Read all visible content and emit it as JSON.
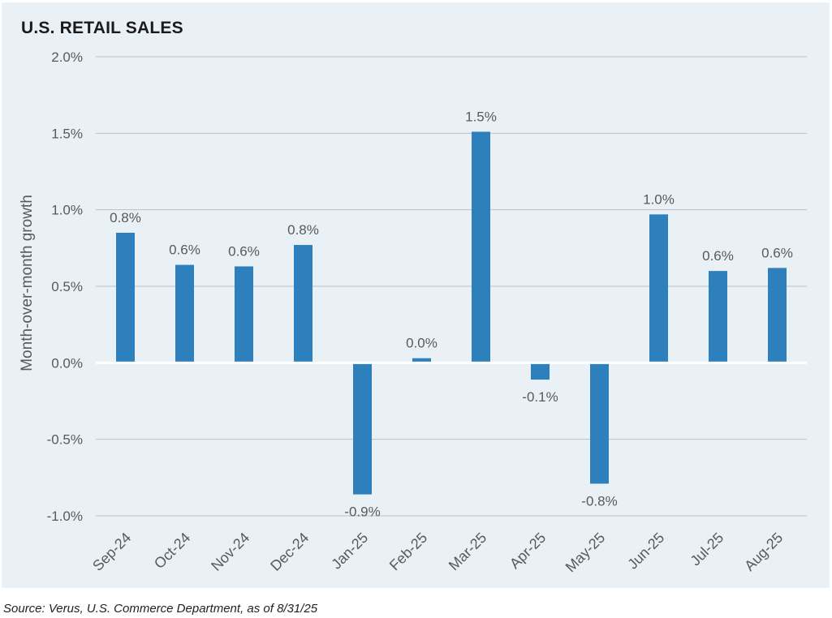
{
  "chart_data": {
    "type": "bar",
    "title": "U.S. RETAIL SALES",
    "ylabel": "Month-over-month growth",
    "xlabel": "",
    "categories": [
      "Sep-24",
      "Oct-24",
      "Nov-24",
      "Dec-24",
      "Jan-25",
      "Feb-25",
      "Mar-25",
      "Apr-25",
      "May-25",
      "Jun-25",
      "Jul-25",
      "Aug-25"
    ],
    "values": [
      0.85,
      0.64,
      0.63,
      0.77,
      -0.86,
      0.03,
      1.51,
      -0.11,
      -0.79,
      0.97,
      0.6,
      0.62
    ],
    "data_labels": [
      "0.8%",
      "0.6%",
      "0.6%",
      "0.8%",
      "-0.9%",
      "0.0%",
      "1.5%",
      "-0.1%",
      "-0.8%",
      "1.0%",
      "0.6%",
      "0.6%"
    ],
    "ylim": [
      -1.0,
      2.0
    ],
    "yticks": [
      2.0,
      1.5,
      1.0,
      0.5,
      0.0,
      -0.5,
      -1.0
    ],
    "ytick_labels": [
      "2.0%",
      "1.5%",
      "1.0%",
      "0.5%",
      "0.0%",
      "-0.5%",
      "-1.0%"
    ],
    "grid": true,
    "bar_color": "#2e80bd",
    "zero_line_color": "#ffffff",
    "grid_color": "#b9c0c6"
  },
  "source": "Source: Verus, U.S. Commerce Department, as of 8/31/25"
}
